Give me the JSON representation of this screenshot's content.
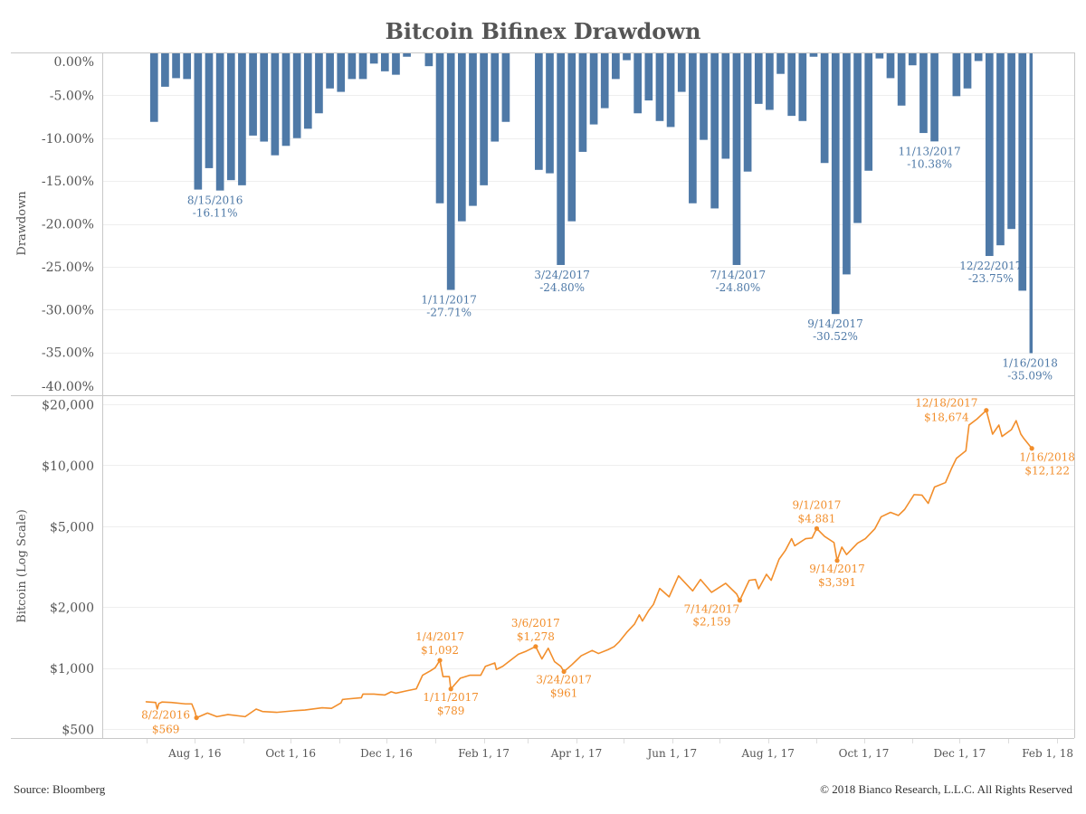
{
  "footer": {
    "source": "Source: Bloomberg",
    "copyright": "© 2018 Bianco Research, L.L.C. All Rights Reserved"
  },
  "colors": {
    "drawdown": "#4e79a7",
    "price": "#f28e2b",
    "text": "#555555",
    "frame": "#c8c8c8",
    "grid": "#eeeeee"
  },
  "x_axis": {
    "range": [
      "2016-06-03",
      "2018-02-12"
    ],
    "ticks": [
      {
        "date": "2016-08-01",
        "label": "Aug 1, 16"
      },
      {
        "date": "2016-10-01",
        "label": "Oct 1, 16"
      },
      {
        "date": "2016-12-01",
        "label": "Dec 1, 16"
      },
      {
        "date": "2017-02-01",
        "label": "Feb 1, 17"
      },
      {
        "date": "2017-04-01",
        "label": "Apr 1, 17"
      },
      {
        "date": "2017-06-01",
        "label": "Jun 1, 17"
      },
      {
        "date": "2017-08-01",
        "label": "Aug 1, 17"
      },
      {
        "date": "2017-10-01",
        "label": "Oct 1, 17"
      },
      {
        "date": "2017-12-01",
        "label": "Dec 1, 17"
      },
      {
        "date": "2018-02-01",
        "label": "Feb 1, 18"
      }
    ]
  },
  "chart_data": [
    {
      "type": "bar",
      "title": "Bitcoin Bifinex Drawdown",
      "xlabel": "",
      "ylabel": "Drawdown",
      "units": "percent",
      "ylim": [
        -40,
        0
      ],
      "grid": true,
      "legend": "none",
      "yticks": [
        {
          "value": 0,
          "label": "0.00%"
        },
        {
          "value": -5,
          "label": "-5.00%"
        },
        {
          "value": -10,
          "label": "-10.00%"
        },
        {
          "value": -15,
          "label": "-15.00%"
        },
        {
          "value": -20,
          "label": "-20.00%"
        },
        {
          "value": -25,
          "label": "-25.00%"
        },
        {
          "value": -30,
          "label": "-30.00%"
        },
        {
          "value": -35,
          "label": "-35.00%"
        },
        {
          "value": -40,
          "label": "-40.00%"
        }
      ],
      "frequency": "weekly (Mon-Fri, deepest value of the week)",
      "end_date": "2018-01-16",
      "week_start": [
        "2016-07-04",
        "2016-07-11",
        "2016-07-18",
        "2016-07-25",
        "2016-08-01",
        "2016-08-08",
        "2016-08-15",
        "2016-08-22",
        "2016-08-29",
        "2016-09-05",
        "2016-09-12",
        "2016-09-19",
        "2016-09-26",
        "2016-10-03",
        "2016-10-10",
        "2016-10-17",
        "2016-10-24",
        "2016-10-31",
        "2016-11-07",
        "2016-11-14",
        "2016-11-21",
        "2016-11-28",
        "2016-12-05",
        "2016-12-12",
        "2016-12-19",
        "2016-12-26",
        "2017-01-02",
        "2017-01-09",
        "2017-01-16",
        "2017-01-23",
        "2017-01-30",
        "2017-02-06",
        "2017-02-13",
        "2017-02-20",
        "2017-02-27",
        "2017-03-06",
        "2017-03-13",
        "2017-03-20",
        "2017-03-27",
        "2017-04-03",
        "2017-04-10",
        "2017-04-17",
        "2017-04-24",
        "2017-05-01",
        "2017-05-08",
        "2017-05-15",
        "2017-05-22",
        "2017-05-29",
        "2017-06-05",
        "2017-06-12",
        "2017-06-19",
        "2017-06-26",
        "2017-07-03",
        "2017-07-10",
        "2017-07-17",
        "2017-07-24",
        "2017-07-31",
        "2017-08-07",
        "2017-08-14",
        "2017-08-21",
        "2017-08-28",
        "2017-09-04",
        "2017-09-11",
        "2017-09-18",
        "2017-09-25",
        "2017-10-02",
        "2017-10-09",
        "2017-10-16",
        "2017-10-23",
        "2017-10-30",
        "2017-11-06",
        "2017-11-13",
        "2017-11-20",
        "2017-11-27",
        "2017-12-04",
        "2017-12-11",
        "2017-12-18",
        "2017-12-25",
        "2018-01-01",
        "2018-01-08",
        "2018-01-15"
      ],
      "values": [
        -8.1,
        -4.0,
        -3.0,
        -3.1,
        -16.0,
        -13.5,
        -16.11,
        -14.9,
        -15.5,
        -9.7,
        -10.4,
        -12.0,
        -10.9,
        -10.0,
        -8.9,
        -7.1,
        -4.2,
        -4.6,
        -3.1,
        -3.1,
        -1.3,
        -2.2,
        -2.6,
        -0.5,
        0,
        -1.6,
        -17.6,
        -27.71,
        -19.7,
        -17.9,
        -15.5,
        -10.4,
        -8.1,
        0,
        0,
        -13.7,
        -14.1,
        -24.8,
        -19.7,
        -11.6,
        -8.4,
        -6.5,
        -3.1,
        -0.9,
        -7.1,
        -5.6,
        -8.0,
        -8.7,
        -4.6,
        -17.6,
        -10.2,
        -18.2,
        -12.4,
        -24.8,
        -13.9,
        -6.0,
        -6.7,
        -2.5,
        -7.4,
        -8.0,
        -0.5,
        -12.9,
        -30.52,
        -25.9,
        -19.9,
        -13.8,
        -0.7,
        -3.0,
        -6.2,
        -1.5,
        -9.4,
        -10.38,
        0,
        -5.1,
        -4.2,
        -1.0,
        -23.75,
        -22.5,
        -20.6,
        -27.8,
        -35.09
      ],
      "annotations": [
        {
          "date": "2016-08-15",
          "date_label": "8/15/2016",
          "value": -16.11,
          "value_label": "-16.11%",
          "position": "below"
        },
        {
          "date": "2017-01-11",
          "date_label": "1/11/2017",
          "value": -27.71,
          "value_label": "-27.71%",
          "position": "below"
        },
        {
          "date": "2017-03-24",
          "date_label": "3/24/2017",
          "value": -24.8,
          "value_label": "-24.80%",
          "position": "below"
        },
        {
          "date": "2017-07-14",
          "date_label": "7/14/2017",
          "value": -24.8,
          "value_label": "-24.80%",
          "position": "below"
        },
        {
          "date": "2017-09-14",
          "date_label": "9/14/2017",
          "value": -30.52,
          "value_label": "-30.52%",
          "position": "below"
        },
        {
          "date": "2017-11-13",
          "date_label": "11/13/2017",
          "value": -10.38,
          "value_label": "-10.38%",
          "position": "below"
        },
        {
          "date": "2017-12-22",
          "date_label": "12/22/2017",
          "value": -23.75,
          "value_label": "-23.75%",
          "position": "below"
        },
        {
          "date": "2018-01-16",
          "date_label": "1/16/2018",
          "value": -35.09,
          "value_label": "-35.09%",
          "position": "below"
        }
      ]
    },
    {
      "type": "line",
      "title": "Bitcoin Bifinex Drawdown",
      "xlabel": "",
      "ylabel": "Bitcoin (Log Scale)",
      "units": "USD",
      "yscale": "log",
      "ylim": [
        452,
        22160
      ],
      "grid": true,
      "legend": "none",
      "yticks": [
        {
          "value": 20000,
          "label": "$20,000"
        },
        {
          "value": 10000,
          "label": "$10,000"
        },
        {
          "value": 5000,
          "label": "$5,000"
        },
        {
          "value": 2000,
          "label": "$2,000"
        },
        {
          "value": 1000,
          "label": "$1,000"
        },
        {
          "value": 500,
          "label": "$500"
        }
      ],
      "x": [
        "2016-07-01",
        "2016-07-07",
        "2016-07-08",
        "2016-07-09",
        "2016-07-11",
        "2016-07-17",
        "2016-07-26",
        "2016-07-30",
        "2016-08-01",
        "2016-08-02",
        "2016-08-09",
        "2016-08-15",
        "2016-08-22",
        "2016-09-02",
        "2016-09-09",
        "2016-09-13",
        "2016-09-22",
        "2016-10-03",
        "2016-10-10",
        "2016-10-21",
        "2016-10-27",
        "2016-11-02",
        "2016-11-03",
        "2016-11-05",
        "2016-11-15",
        "2016-11-16",
        "2016-11-23",
        "2016-11-30",
        "2016-12-04",
        "2016-12-07",
        "2016-12-14",
        "2016-12-20",
        "2016-12-24",
        "2016-12-29",
        "2017-01-01",
        "2017-01-04",
        "2017-01-06",
        "2017-01-10",
        "2017-01-11",
        "2017-01-17",
        "2017-01-23",
        "2017-01-30",
        "2017-02-02",
        "2017-02-08",
        "2017-02-09",
        "2017-02-13",
        "2017-02-23",
        "2017-02-28",
        "2017-03-06",
        "2017-03-08",
        "2017-03-10",
        "2017-03-14",
        "2017-03-18",
        "2017-03-22",
        "2017-03-24",
        "2017-03-29",
        "2017-04-04",
        "2017-04-11",
        "2017-04-15",
        "2017-04-21",
        "2017-04-25",
        "2017-04-28",
        "2017-05-03",
        "2017-05-08",
        "2017-05-11",
        "2017-05-13",
        "2017-05-17",
        "2017-05-20",
        "2017-05-24",
        "2017-05-30",
        "2017-06-05",
        "2017-06-14",
        "2017-06-19",
        "2017-06-26",
        "2017-07-05",
        "2017-07-12",
        "2017-07-14",
        "2017-07-20",
        "2017-07-24",
        "2017-07-26",
        "2017-07-31",
        "2017-08-03",
        "2017-08-08",
        "2017-08-12",
        "2017-08-16",
        "2017-08-18",
        "2017-08-25",
        "2017-08-29",
        "2017-09-01",
        "2017-09-06",
        "2017-09-12",
        "2017-09-14",
        "2017-09-17",
        "2017-09-20",
        "2017-09-27",
        "2017-10-02",
        "2017-10-08",
        "2017-10-12",
        "2017-10-18",
        "2017-10-23",
        "2017-10-27",
        "2017-11-02",
        "2017-11-07",
        "2017-11-11",
        "2017-11-15",
        "2017-11-22",
        "2017-11-26",
        "2017-11-29",
        "2017-12-05",
        "2017-12-07",
        "2017-12-12",
        "2017-12-18",
        "2017-12-22",
        "2017-12-26",
        "2017-12-28",
        "2018-01-03",
        "2018-01-06",
        "2018-01-09",
        "2018-01-11",
        "2018-01-16"
      ],
      "values": [
        682,
        677,
        628,
        668,
        680,
        677,
        666,
        666,
        610,
        569,
        600,
        576,
        590,
        576,
        628,
        611,
        605,
        616,
        621,
        637,
        633,
        673,
        700,
        703,
        714,
        744,
        744,
        737,
        764,
        752,
        773,
        790,
        922,
        970,
        1004,
        1092,
        908,
        908,
        789,
        891,
        922,
        922,
        1020,
        1060,
        985,
        1020,
        1170,
        1212,
        1278,
        1190,
        1110,
        1253,
        1077,
        1020,
        961,
        1038,
        1150,
        1222,
        1180,
        1232,
        1276,
        1343,
        1500,
        1650,
        1830,
        1707,
        1923,
        2060,
        2470,
        2246,
        2850,
        2403,
        2735,
        2364,
        2618,
        2320,
        2159,
        2710,
        2735,
        2460,
        2900,
        2710,
        3440,
        3800,
        4350,
        4010,
        4350,
        4380,
        4881,
        4460,
        4160,
        3391,
        3950,
        3630,
        4130,
        4350,
        4860,
        5570,
        5860,
        5660,
        6060,
        7170,
        7130,
        6490,
        7810,
        8220,
        9710,
        10830,
        11800,
        15800,
        16900,
        18674,
        14250,
        15800,
        13880,
        15000,
        16600,
        14250,
        13530,
        12122
      ],
      "annotations": [
        {
          "date": "2016-08-02",
          "date_label": "8/2/2016",
          "value": 569,
          "value_label": "$569",
          "position": "left"
        },
        {
          "date": "2017-01-04",
          "date_label": "1/4/2017",
          "value": 1092,
          "value_label": "$1,092",
          "position": "above"
        },
        {
          "date": "2017-01-11",
          "date_label": "1/11/2017",
          "value": 789,
          "value_label": "$789",
          "position": "below"
        },
        {
          "date": "2017-03-06",
          "date_label": "3/6/2017",
          "value": 1278,
          "value_label": "$1,278",
          "position": "above"
        },
        {
          "date": "2017-03-24",
          "date_label": "3/24/2017",
          "value": 961,
          "value_label": "$961",
          "position": "below"
        },
        {
          "date": "2017-07-14",
          "date_label": "7/14/2017",
          "value": 2159,
          "value_label": "$2,159",
          "position": "below-left"
        },
        {
          "date": "2017-09-01",
          "date_label": "9/1/2017",
          "value": 4881,
          "value_label": "$4,881",
          "position": "above"
        },
        {
          "date": "2017-09-14",
          "date_label": "9/14/2017",
          "value": 3391,
          "value_label": "$3,391",
          "position": "below"
        },
        {
          "date": "2017-12-18",
          "date_label": "12/18/2017",
          "value": 18674,
          "value_label": "$18,674",
          "position": "above-left"
        },
        {
          "date": "2018-01-16",
          "date_label": "1/16/2018",
          "value": 12122,
          "value_label": "$12,122",
          "position": "below-right"
        }
      ]
    }
  ]
}
